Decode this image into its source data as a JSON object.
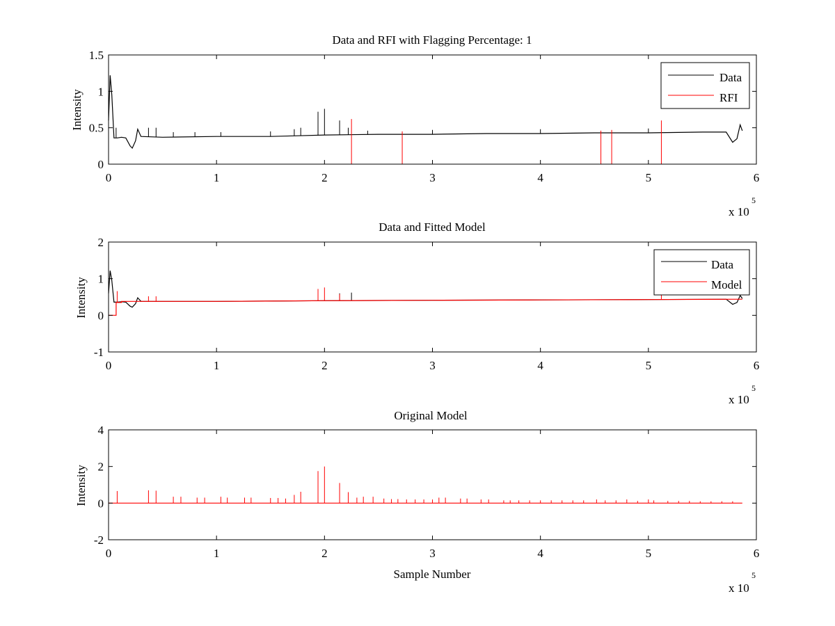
{
  "chart_data": [
    {
      "type": "line",
      "title": "Data and RFI with Flagging Percentage: 1",
      "xlabel": "",
      "ylabel": "Intensity",
      "xlim": [
        0,
        600000
      ],
      "ylim": [
        0,
        1.5
      ],
      "x_ticks": [
        0,
        1,
        2,
        3,
        4,
        5,
        6
      ],
      "y_ticks": [
        "0",
        "0.5",
        "1",
        "1.5"
      ],
      "x_exponent_label": "x 10",
      "x_exponent": "5",
      "legend": {
        "placement": "top-right",
        "entries": [
          "Data",
          "RFI"
        ]
      },
      "grid": false,
      "series": [
        {
          "name": "Data",
          "color": "#000000",
          "x": [
            0,
            1500,
            3000,
            5000,
            8000,
            12000,
            16000,
            20000,
            22000,
            25000,
            27000,
            30000,
            50000,
            100000,
            150000,
            175000,
            200000,
            250000,
            300000,
            350000,
            400000,
            450000,
            500000,
            550000,
            572000,
            578000,
            582000,
            585000,
            587000
          ],
          "y": [
            0.6,
            1.22,
            0.95,
            0.36,
            0.36,
            0.37,
            0.36,
            0.25,
            0.22,
            0.32,
            0.48,
            0.38,
            0.37,
            0.38,
            0.38,
            0.39,
            0.4,
            0.41,
            0.41,
            0.42,
            0.42,
            0.43,
            0.43,
            0.44,
            0.44,
            0.3,
            0.35,
            0.54,
            0.46
          ],
          "spikes": [
            {
              "x": 7000,
              "y": 0.5
            },
            {
              "x": 37000,
              "y": 0.5
            },
            {
              "x": 44000,
              "y": 0.5
            },
            {
              "x": 60000,
              "y": 0.44
            },
            {
              "x": 80000,
              "y": 0.44
            },
            {
              "x": 104000,
              "y": 0.44
            },
            {
              "x": 150000,
              "y": 0.45
            },
            {
              "x": 172000,
              "y": 0.48
            },
            {
              "x": 178000,
              "y": 0.5
            },
            {
              "x": 194000,
              "y": 0.72
            },
            {
              "x": 200000,
              "y": 0.76
            },
            {
              "x": 214000,
              "y": 0.6
            },
            {
              "x": 222000,
              "y": 0.5
            },
            {
              "x": 240000,
              "y": 0.46
            },
            {
              "x": 300000,
              "y": 0.47
            },
            {
              "x": 400000,
              "y": 0.48
            },
            {
              "x": 500000,
              "y": 0.49
            }
          ]
        },
        {
          "name": "RFI",
          "color": "#ff0000",
          "spikes": [
            {
              "x": 225000,
              "y": 0.62
            },
            {
              "x": 272000,
              "y": 0.45
            },
            {
              "x": 456000,
              "y": 0.46
            },
            {
              "x": 466000,
              "y": 0.47
            },
            {
              "x": 512000,
              "y": 0.6
            }
          ]
        }
      ]
    },
    {
      "type": "line",
      "title": "Data and Fitted Model",
      "xlabel": "",
      "ylabel": "Intensity",
      "xlim": [
        0,
        600000
      ],
      "ylim": [
        -1,
        2
      ],
      "x_ticks": [
        0,
        1,
        2,
        3,
        4,
        5,
        6
      ],
      "y_ticks": [
        "-1",
        "0",
        "1",
        "2"
      ],
      "x_exponent_label": "x 10",
      "x_exponent": "5",
      "legend": {
        "placement": "top-right",
        "entries": [
          "Data",
          "Model"
        ]
      },
      "grid": false,
      "series": [
        {
          "name": "Data",
          "color": "#000000",
          "x": [
            0,
            1500,
            3000,
            5000,
            8000,
            12000,
            16000,
            20000,
            22000,
            25000,
            27000,
            30000,
            100000,
            200000,
            300000,
            400000,
            500000,
            572000,
            578000,
            582000,
            585000,
            587000
          ],
          "y": [
            0.6,
            1.22,
            0.95,
            0.36,
            0.36,
            0.37,
            0.36,
            0.25,
            0.22,
            0.32,
            0.48,
            0.38,
            0.38,
            0.4,
            0.41,
            0.42,
            0.43,
            0.44,
            0.3,
            0.35,
            0.54,
            0.46
          ],
          "spikes": [
            {
              "x": 214000,
              "y": 0.6
            },
            {
              "x": 225000,
              "y": 0.62
            }
          ]
        },
        {
          "name": "Model",
          "color": "#ff0000",
          "x": [
            0,
            7000,
            7000,
            12000,
            12000,
            100000,
            200000,
            300000,
            400000,
            500000,
            587000
          ],
          "y": [
            0,
            0,
            0.35,
            0.35,
            0.38,
            0.38,
            0.4,
            0.41,
            0.42,
            0.43,
            0.44
          ],
          "spikes": [
            {
              "x": 8000,
              "y": 0.66
            },
            {
              "x": 37000,
              "y": 0.52
            },
            {
              "x": 44000,
              "y": 0.52
            },
            {
              "x": 194000,
              "y": 0.72
            },
            {
              "x": 200000,
              "y": 0.76
            },
            {
              "x": 214000,
              "y": 0.58
            },
            {
              "x": 512000,
              "y": 0.55
            }
          ]
        }
      ]
    },
    {
      "type": "line",
      "title": "Original Model",
      "xlabel": "Sample Number",
      "ylabel": "Intensity",
      "xlim": [
        0,
        600000
      ],
      "ylim": [
        -2,
        4
      ],
      "x_ticks": [
        0,
        1,
        2,
        3,
        4,
        5,
        6
      ],
      "y_ticks": [
        "-2",
        "0",
        "2",
        "4"
      ],
      "x_exponent_label": "x 10",
      "x_exponent": "5",
      "grid": false,
      "series": [
        {
          "color": "#ff0000",
          "x": [
            0,
            587000
          ],
          "y": [
            0,
            0
          ],
          "spikes": [
            {
              "x": 8000,
              "y": 0.66
            },
            {
              "x": 37000,
              "y": 0.7
            },
            {
              "x": 44000,
              "y": 0.68
            },
            {
              "x": 60000,
              "y": 0.35
            },
            {
              "x": 67000,
              "y": 0.35
            },
            {
              "x": 82000,
              "y": 0.3
            },
            {
              "x": 89000,
              "y": 0.3
            },
            {
              "x": 104000,
              "y": 0.35
            },
            {
              "x": 110000,
              "y": 0.3
            },
            {
              "x": 126000,
              "y": 0.3
            },
            {
              "x": 132000,
              "y": 0.3
            },
            {
              "x": 150000,
              "y": 0.28
            },
            {
              "x": 157000,
              "y": 0.28
            },
            {
              "x": 164000,
              "y": 0.25
            },
            {
              "x": 172000,
              "y": 0.45
            },
            {
              "x": 178000,
              "y": 0.62
            },
            {
              "x": 194000,
              "y": 1.75
            },
            {
              "x": 200000,
              "y": 2.0
            },
            {
              "x": 214000,
              "y": 1.1
            },
            {
              "x": 222000,
              "y": 0.6
            },
            {
              "x": 230000,
              "y": 0.3
            },
            {
              "x": 236000,
              "y": 0.35
            },
            {
              "x": 245000,
              "y": 0.35
            },
            {
              "x": 255000,
              "y": 0.25
            },
            {
              "x": 262000,
              "y": 0.22
            },
            {
              "x": 268000,
              "y": 0.22
            },
            {
              "x": 276000,
              "y": 0.2
            },
            {
              "x": 284000,
              "y": 0.2
            },
            {
              "x": 292000,
              "y": 0.2
            },
            {
              "x": 300000,
              "y": 0.2
            },
            {
              "x": 306000,
              "y": 0.3
            },
            {
              "x": 312000,
              "y": 0.3
            },
            {
              "x": 326000,
              "y": 0.25
            },
            {
              "x": 332000,
              "y": 0.25
            },
            {
              "x": 345000,
              "y": 0.2
            },
            {
              "x": 352000,
              "y": 0.2
            },
            {
              "x": 366000,
              "y": 0.15
            },
            {
              "x": 372000,
              "y": 0.15
            },
            {
              "x": 380000,
              "y": 0.15
            },
            {
              "x": 390000,
              "y": 0.15
            },
            {
              "x": 400000,
              "y": 0.15
            },
            {
              "x": 410000,
              "y": 0.15
            },
            {
              "x": 420000,
              "y": 0.15
            },
            {
              "x": 430000,
              "y": 0.15
            },
            {
              "x": 440000,
              "y": 0.15
            },
            {
              "x": 452000,
              "y": 0.2
            },
            {
              "x": 460000,
              "y": 0.15
            },
            {
              "x": 470000,
              "y": 0.15
            },
            {
              "x": 480000,
              "y": 0.2
            },
            {
              "x": 490000,
              "y": 0.12
            },
            {
              "x": 500000,
              "y": 0.2
            },
            {
              "x": 505000,
              "y": 0.15
            },
            {
              "x": 518000,
              "y": 0.12
            },
            {
              "x": 528000,
              "y": 0.12
            },
            {
              "x": 538000,
              "y": 0.12
            },
            {
              "x": 548000,
              "y": 0.1
            },
            {
              "x": 558000,
              "y": 0.1
            },
            {
              "x": 568000,
              "y": 0.1
            },
            {
              "x": 578000,
              "y": 0.1
            }
          ]
        }
      ]
    }
  ]
}
